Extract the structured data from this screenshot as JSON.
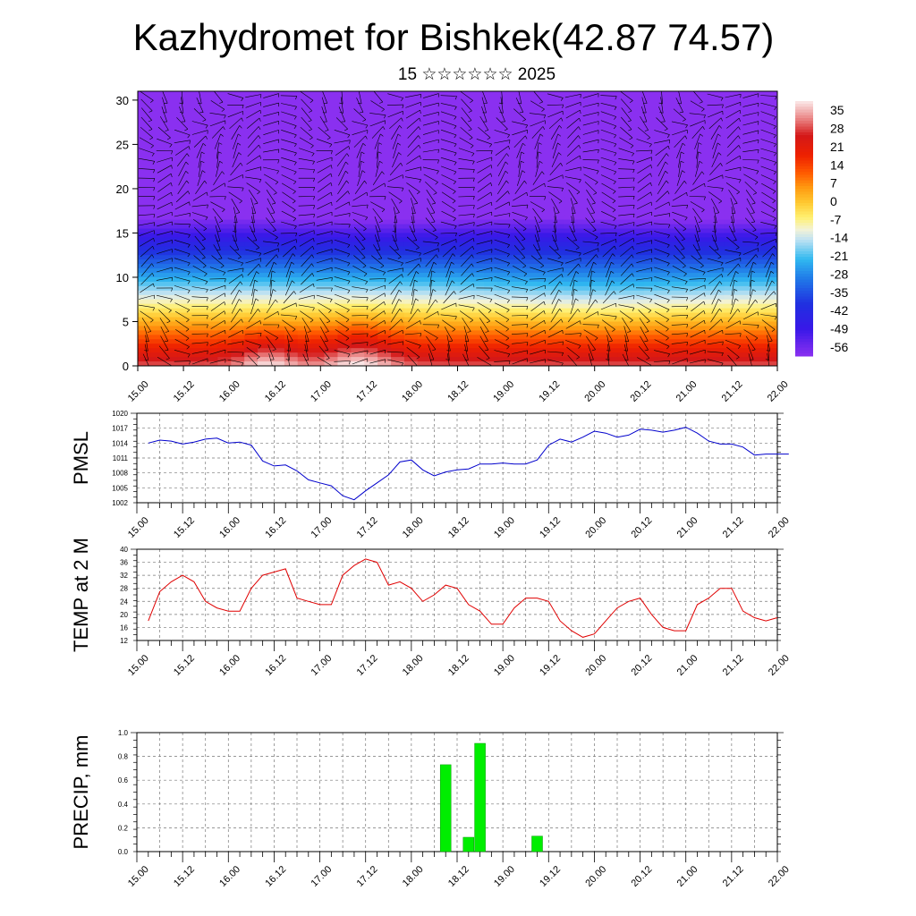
{
  "title": "Kazhydromet for Bishkek(42.87 74.57)",
  "subtitle": "15 ☆☆☆☆☆☆ 2025",
  "time_labels": [
    "15.00",
    "15.12",
    "16.00",
    "16.12",
    "17.00",
    "17.12",
    "18.00",
    "18.12",
    "19.00",
    "19.12",
    "20.00",
    "20.12",
    "21.00",
    "21.12",
    "22.00"
  ],
  "colors": {
    "pmsl_line": "#0000cc",
    "temp_line": "#e00000",
    "precip_bar": "#00ee00"
  },
  "chart_data": [
    {
      "type": "heatmap",
      "name": "cross-section",
      "x": [
        "15.00",
        "15.12",
        "16.00",
        "16.12",
        "17.00",
        "17.12",
        "18.00",
        "18.12",
        "19.00",
        "19.12",
        "20.00",
        "20.12",
        "21.00",
        "21.12",
        "22.00"
      ],
      "yticks": [
        0,
        5,
        10,
        15,
        20,
        25,
        30
      ],
      "ylim": [
        0,
        31
      ],
      "colorbar_labels": [
        "35",
        "28",
        "21",
        "14",
        "7",
        "0",
        "-7",
        "-14",
        "-21",
        "-28",
        "-35",
        "-42",
        "-49",
        "-56"
      ],
      "colorbar_range": [
        -63,
        40
      ],
      "color_stops": [
        {
          "v": 40,
          "c": "#fbeaea"
        },
        {
          "v": 32,
          "c": "#e87878"
        },
        {
          "v": 26,
          "c": "#d41818"
        },
        {
          "v": 18,
          "c": "#ee2000"
        },
        {
          "v": 11,
          "c": "#ff5a00"
        },
        {
          "v": 5,
          "c": "#ff9a10"
        },
        {
          "v": -1,
          "c": "#ffc830"
        },
        {
          "v": -7,
          "c": "#fff070"
        },
        {
          "v": -12,
          "c": "#f2f2d8"
        },
        {
          "v": -16,
          "c": "#c0e2f2"
        },
        {
          "v": -24,
          "c": "#30b8f0"
        },
        {
          "v": -32,
          "c": "#2078e8"
        },
        {
          "v": -42,
          "c": "#2030e0"
        },
        {
          "v": -52,
          "c": "#3818e8"
        },
        {
          "v": -63,
          "c": "#8a30f0"
        }
      ]
    },
    {
      "type": "line",
      "name": "PMSL",
      "ylabel": "PMSL",
      "ylim": [
        1002,
        1020
      ],
      "yticks": [
        1002,
        1005,
        1008,
        1011,
        1014,
        1017,
        1020
      ],
      "x_hours": [
        0,
        3,
        6,
        9,
        12,
        15,
        18,
        21,
        24,
        27,
        30,
        33,
        36,
        39,
        42,
        45,
        48,
        51,
        54,
        57,
        60,
        63,
        66,
        69,
        72,
        75,
        78,
        81,
        84,
        87,
        90,
        93,
        96,
        99,
        102,
        105,
        108,
        111,
        114,
        117,
        120,
        123,
        126,
        129,
        132,
        135,
        138,
        141,
        144,
        147,
        150,
        153,
        156,
        159,
        162,
        165,
        168
      ],
      "values": [
        1014.0,
        1014.6,
        1014.4,
        1013.8,
        1014.2,
        1014.8,
        1015.0,
        1014.0,
        1014.2,
        1013.6,
        1010.4,
        1009.4,
        1009.6,
        1008.4,
        1006.6,
        1006.0,
        1005.4,
        1003.4,
        1002.6,
        1004.4,
        1006.0,
        1007.6,
        1010.2,
        1010.6,
        1008.6,
        1007.4,
        1008.2,
        1008.6,
        1008.8,
        1009.8,
        1009.8,
        1010.0,
        1009.8,
        1009.8,
        1010.6,
        1013.6,
        1014.8,
        1014.2,
        1015.2,
        1016.4,
        1016.0,
        1015.2,
        1015.6,
        1016.8,
        1016.6,
        1016.2,
        1016.6,
        1017.2,
        1016.0,
        1014.4,
        1013.8,
        1013.8,
        1013.2,
        1011.6,
        1011.8,
        1011.8,
        1011.8
      ]
    },
    {
      "type": "line",
      "name": "TEMP at 2 M",
      "ylabel": "TEMP at 2 M",
      "ylim": [
        12,
        40
      ],
      "yticks": [
        12,
        16,
        20,
        24,
        28,
        32,
        36,
        40
      ],
      "x_hours": [
        0,
        3,
        6,
        9,
        12,
        15,
        18,
        21,
        24,
        27,
        30,
        33,
        36,
        39,
        42,
        45,
        48,
        51,
        54,
        57,
        60,
        63,
        66,
        69,
        72,
        75,
        78,
        81,
        84,
        87,
        90,
        93,
        96,
        99,
        102,
        105,
        108,
        111,
        114,
        117,
        120,
        123,
        126,
        129,
        132,
        135,
        138,
        141,
        144,
        147,
        150,
        153,
        156,
        159,
        162,
        165
      ],
      "values": [
        18,
        27,
        30,
        32,
        30,
        24,
        22,
        21,
        21,
        28,
        32,
        33,
        34,
        25,
        24,
        23,
        23,
        32,
        35,
        37,
        36,
        29,
        30,
        28,
        24,
        26,
        29,
        28,
        23,
        21,
        17,
        17,
        22,
        25,
        25,
        24,
        18,
        15,
        13,
        14,
        18,
        22,
        24,
        25,
        20,
        16,
        15,
        15,
        23,
        25,
        28,
        28,
        21,
        19,
        18,
        19
      ]
    },
    {
      "type": "bar",
      "name": "PRECIP, mm",
      "ylabel": "PRECIP, mm",
      "ylim": [
        0,
        1.0
      ],
      "yticks": [
        "0.0",
        "0.2",
        "0.4",
        "0.6",
        "0.8",
        "1.0"
      ],
      "bars": [
        {
          "hour": 78,
          "value": 0.73
        },
        {
          "hour": 84,
          "value": 0.12
        },
        {
          "hour": 87,
          "value": 0.91
        },
        {
          "hour": 102,
          "value": 0.13
        }
      ]
    }
  ]
}
